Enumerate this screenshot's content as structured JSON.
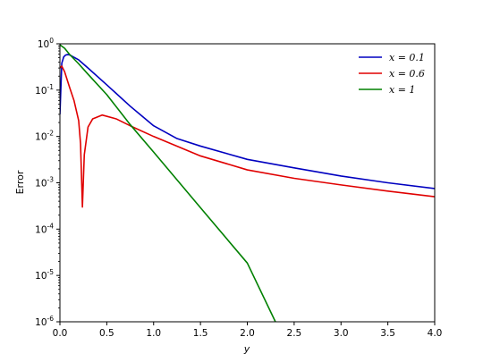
{
  "chart_data": {
    "type": "line",
    "title": "",
    "xlabel": "y",
    "ylabel": "Error",
    "xlim": [
      0.0,
      4.0
    ],
    "ylim": [
      1e-06,
      1
    ],
    "yscale": "log",
    "grid": false,
    "legend_position": "top-right",
    "x_ticks": [
      "0.0",
      "0.5",
      "1.0",
      "1.5",
      "2.0",
      "2.5",
      "3.0",
      "3.5",
      "4.0"
    ],
    "y_ticks": [
      {
        "base": "10",
        "exp": "-6"
      },
      {
        "base": "10",
        "exp": "-5"
      },
      {
        "base": "10",
        "exp": "-4"
      },
      {
        "base": "10",
        "exp": "-3"
      },
      {
        "base": "10",
        "exp": "-2"
      },
      {
        "base": "10",
        "exp": "-1"
      },
      {
        "base": "10",
        "exp": "0"
      }
    ],
    "series": [
      {
        "name": "x = 0.1",
        "color": "#0000c0",
        "x": [
          0.0,
          0.02,
          0.04,
          0.06,
          0.08,
          0.1,
          0.2,
          0.3,
          0.5,
          0.75,
          1.0,
          1.25,
          1.5,
          2.0,
          2.5,
          3.0,
          3.5,
          4.0
        ],
        "y": [
          0.03,
          0.38,
          0.52,
          0.57,
          0.585,
          0.58,
          0.45,
          0.3,
          0.13,
          0.045,
          0.017,
          0.009,
          0.0062,
          0.0032,
          0.0021,
          0.0014,
          0.001,
          0.00075
        ]
      },
      {
        "name": "x = 0.6",
        "color": "#e00000",
        "x": [
          0.0,
          0.02,
          0.05,
          0.1,
          0.15,
          0.2,
          0.22,
          0.24,
          0.26,
          0.3,
          0.35,
          0.45,
          0.6,
          0.75,
          1.0,
          1.5,
          2.0,
          2.5,
          3.0,
          3.5,
          4.0
        ],
        "y": [
          0.3,
          0.33,
          0.25,
          0.12,
          0.06,
          0.022,
          0.007,
          0.0003,
          0.004,
          0.016,
          0.024,
          0.029,
          0.024,
          0.017,
          0.01,
          0.0038,
          0.0019,
          0.00125,
          0.0009,
          0.00066,
          0.0005
        ]
      },
      {
        "name": "x = 1",
        "color": "#008000",
        "x": [
          0.0,
          0.05,
          0.1,
          0.2,
          0.3,
          0.5,
          0.75,
          1.0,
          1.5,
          2.0,
          2.3
        ],
        "y": [
          0.95,
          0.8,
          0.6,
          0.37,
          0.22,
          0.08,
          0.018,
          0.0046,
          0.00029,
          1.85e-05,
          1e-06
        ]
      }
    ]
  }
}
